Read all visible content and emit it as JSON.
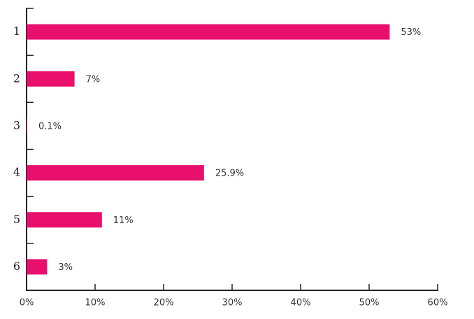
{
  "chart_data": {
    "type": "bar",
    "orientation": "horizontal",
    "categories": [
      "1",
      "2",
      "3",
      "4",
      "5",
      "6"
    ],
    "values": [
      53,
      7,
      0.1,
      25.9,
      11,
      3
    ],
    "value_labels": [
      "53%",
      "7%",
      "0.1%",
      "25.9%",
      "11%",
      "3%"
    ],
    "color": "#e8106c",
    "xlim": [
      0,
      60
    ],
    "xticks": [
      {
        "value": 0,
        "label": "0%"
      },
      {
        "value": 10,
        "label": "10%"
      },
      {
        "value": 20,
        "label": "20%"
      },
      {
        "value": 30,
        "label": "30%"
      },
      {
        "value": 40,
        "label": "40%"
      },
      {
        "value": 50,
        "label": "50%"
      },
      {
        "value": 60,
        "label": "60%"
      }
    ]
  }
}
